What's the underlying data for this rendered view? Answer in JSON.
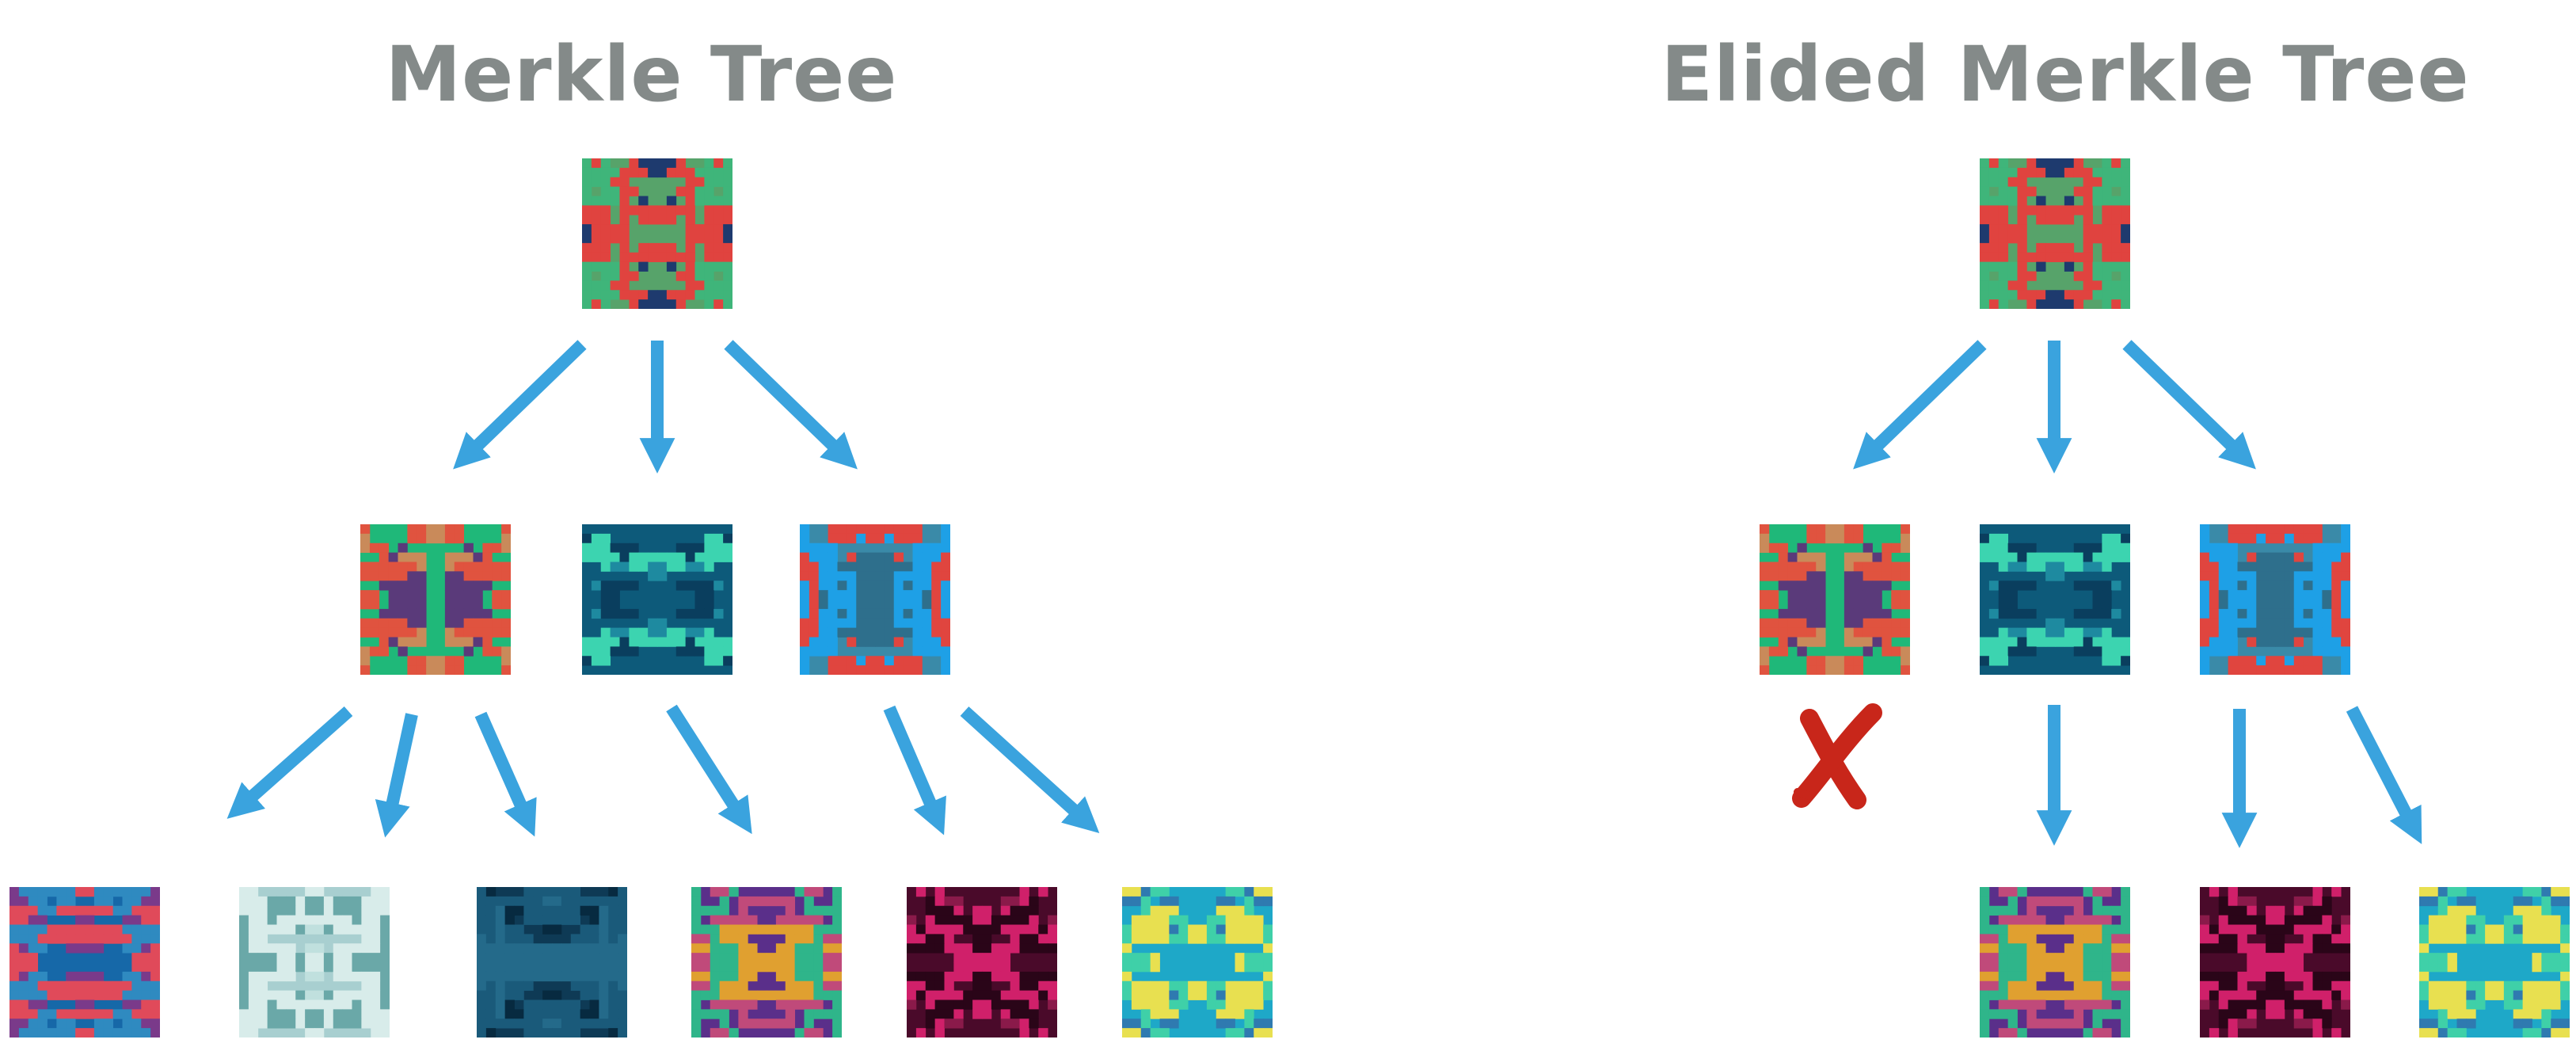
{
  "left_diagram": {
    "title": "Merkle Tree",
    "root": {
      "name": "root-hash",
      "palette": {
        "bg": "#57a36a",
        "c1": "#e0433f",
        "c2": "#1e3a6e",
        "c3": "#3fb57a"
      }
    },
    "middle": [
      {
        "name": "node-a",
        "palette": {
          "bg": "#1fb879",
          "c1": "#e0533f",
          "c2": "#5a3a7a",
          "c3": "#c98a5a"
        }
      },
      {
        "name": "node-b",
        "palette": {
          "bg": "#0d5a7a",
          "c1": "#3cd4b0",
          "c2": "#1e8aa0",
          "c3": "#0a3e5e"
        }
      },
      {
        "name": "node-c",
        "palette": {
          "bg": "#3a8aa8",
          "c1": "#1ea0e6",
          "c2": "#e0453f",
          "c3": "#2e6f8c"
        }
      }
    ],
    "leaves": [
      {
        "name": "leaf-1",
        "palette": {
          "bg": "#1668a8",
          "c1": "#e04a5a",
          "c2": "#7a3a8a",
          "c3": "#2f8ac0"
        }
      },
      {
        "name": "leaf-2",
        "palette": {
          "bg": "#a8cfd0",
          "c1": "#d8ecea",
          "c2": "#6aa8a8",
          "c3": "#c0e0de"
        }
      },
      {
        "name": "leaf-3",
        "palette": {
          "bg": "#0e3a55",
          "c1": "#1a5a7a",
          "c2": "#072a40",
          "c3": "#246a8a"
        }
      },
      {
        "name": "leaf-4",
        "palette": {
          "bg": "#5a2f8a",
          "c1": "#2fb58a",
          "c2": "#e0a030",
          "c3": "#c04a7a"
        }
      },
      {
        "name": "leaf-5",
        "palette": {
          "bg": "#4a0a2a",
          "c1": "#d0206a",
          "c2": "#2a0518",
          "c3": "#8a1a4a"
        }
      },
      {
        "name": "leaf-6",
        "palette": {
          "bg": "#1ea8c8",
          "c1": "#3fd0a8",
          "c2": "#e8e050",
          "c3": "#2f7ab0"
        }
      }
    ]
  },
  "right_diagram": {
    "title": "Elided Merkle Tree",
    "elided_marker": "x-mark",
    "elided_node": "node-a"
  },
  "colors": {
    "title": "#848a89",
    "arrow": "#3aa3de",
    "x_mark": "#c8261a"
  }
}
